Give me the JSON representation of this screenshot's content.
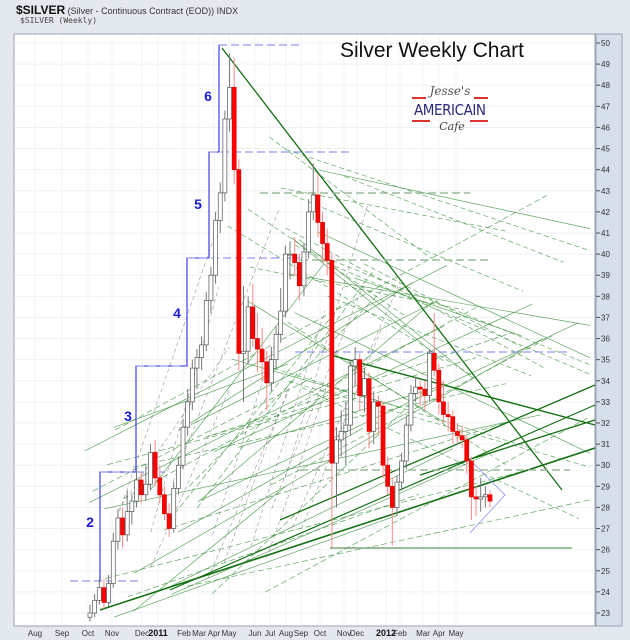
{
  "header": {
    "symbol": "$SILVER",
    "description": "(Silver - Continuous Contract (EOD)) INDX",
    "subtitle": "$SILVER (Weekly)"
  },
  "logo": {
    "text": "Jesse's AMERICAIN Cafe"
  },
  "chart_data": {
    "type": "candlestick",
    "title": "Silver Weekly Chart",
    "ylim": [
      22.5,
      50.5
    ],
    "y_ticks": [
      23,
      24,
      25,
      26,
      27,
      28,
      29,
      30,
      31,
      32,
      33,
      34,
      35,
      36,
      37,
      38,
      39,
      40,
      41,
      42,
      43,
      44,
      45,
      46,
      47,
      48,
      49,
      50
    ],
    "x_ticks": [
      "Aug",
      "Sep",
      "Oct",
      "Nov",
      "Dec",
      "2011",
      "Feb",
      "Mar",
      "Apr",
      "May",
      "Jun",
      "Jul",
      "Aug",
      "Sep",
      "Oct",
      "Nov",
      "Dec",
      "2012",
      "Feb",
      "Mar",
      "Apr",
      "May"
    ],
    "grid": true,
    "colors": {
      "up": "#ffffff",
      "down": "#ff0000",
      "trendline": "#1a7a1a",
      "wave": "#1b1bdc"
    },
    "wave_labels": [
      "2",
      "3",
      "4",
      "5",
      "6"
    ],
    "candles_ohlc": [
      [
        22.8,
        23.4,
        22.6,
        23.0
      ],
      [
        23.0,
        23.9,
        22.8,
        23.6
      ],
      [
        23.6,
        24.6,
        23.4,
        24.2
      ],
      [
        24.2,
        24.6,
        23.2,
        23.5
      ],
      [
        23.5,
        24.8,
        23.3,
        24.4
      ],
      [
        24.4,
        26.8,
        24.2,
        26.4
      ],
      [
        26.4,
        27.9,
        26.0,
        27.5
      ],
      [
        27.5,
        28.0,
        26.1,
        26.7
      ],
      [
        26.7,
        28.8,
        26.4,
        27.8
      ],
      [
        27.8,
        28.6,
        27.2,
        28.3
      ],
      [
        28.3,
        29.8,
        28.0,
        29.3
      ],
      [
        29.3,
        29.7,
        28.2,
        28.6
      ],
      [
        28.6,
        30.0,
        28.3,
        29.1
      ],
      [
        29.1,
        31.0,
        28.8,
        30.6
      ],
      [
        30.6,
        31.2,
        29.0,
        29.4
      ],
      [
        29.4,
        30.0,
        28.2,
        28.6
      ],
      [
        28.6,
        29.0,
        27.4,
        27.7
      ],
      [
        27.7,
        28.2,
        26.6,
        27.0
      ],
      [
        27.0,
        29.2,
        26.8,
        28.9
      ],
      [
        28.9,
        30.4,
        28.6,
        30.0
      ],
      [
        30.0,
        32.2,
        29.8,
        31.8
      ],
      [
        31.8,
        33.6,
        31.4,
        33.0
      ],
      [
        33.0,
        35.0,
        32.6,
        34.6
      ],
      [
        34.6,
        35.5,
        33.6,
        35.1
      ],
      [
        35.1,
        36.1,
        34.5,
        35.7
      ],
      [
        35.7,
        38.2,
        35.4,
        37.8
      ],
      [
        37.8,
        39.4,
        37.2,
        39.0
      ],
      [
        39.0,
        42.0,
        38.6,
        41.6
      ],
      [
        41.6,
        43.4,
        41.0,
        42.9
      ],
      [
        42.9,
        46.8,
        42.5,
        46.4
      ],
      [
        46.4,
        49.5,
        45.8,
        47.9
      ],
      [
        47.9,
        49.3,
        43.3,
        44.0
      ],
      [
        44.0,
        44.5,
        34.5,
        35.3
      ],
      [
        35.3,
        38.5,
        33.0,
        35.4
      ],
      [
        35.4,
        38.0,
        34.8,
        37.5
      ],
      [
        37.5,
        38.6,
        35.6,
        36.0
      ],
      [
        36.0,
        37.2,
        34.4,
        35.5
      ],
      [
        35.5,
        36.5,
        34.0,
        34.9
      ],
      [
        34.9,
        35.4,
        32.6,
        33.9
      ],
      [
        33.9,
        35.6,
        33.5,
        35.0
      ],
      [
        35.0,
        36.6,
        34.6,
        36.2
      ],
      [
        36.2,
        38.4,
        35.8,
        37.3
      ],
      [
        37.3,
        40.4,
        37.0,
        40.0
      ],
      [
        40.0,
        40.6,
        38.8,
        40.0
      ],
      [
        40.0,
        40.8,
        39.0,
        39.6
      ],
      [
        39.6,
        40.0,
        37.8,
        38.5
      ],
      [
        38.5,
        40.5,
        38.0,
        40.1
      ],
      [
        40.1,
        42.6,
        39.8,
        42.0
      ],
      [
        42.0,
        44.3,
        41.6,
        42.8
      ],
      [
        42.8,
        43.8,
        40.8,
        41.5
      ],
      [
        41.5,
        42.0,
        39.6,
        40.5
      ],
      [
        40.5,
        41.2,
        39.0,
        39.7
      ],
      [
        39.7,
        40.0,
        26.1,
        30.1
      ],
      [
        30.1,
        31.8,
        28.0,
        31.2
      ],
      [
        31.2,
        32.6,
        30.4,
        31.6
      ],
      [
        31.6,
        33.0,
        30.0,
        31.9
      ],
      [
        31.9,
        35.0,
        31.4,
        34.7
      ],
      [
        34.7,
        35.6,
        33.8,
        35.0
      ],
      [
        35.0,
        35.3,
        32.6,
        33.3
      ],
      [
        33.3,
        34.6,
        32.5,
        34.1
      ],
      [
        34.1,
        34.4,
        30.8,
        31.6
      ],
      [
        31.6,
        33.5,
        31.0,
        33.0
      ],
      [
        33.0,
        33.3,
        31.4,
        32.8
      ],
      [
        32.8,
        33.0,
        29.4,
        30.0
      ],
      [
        30.0,
        30.4,
        28.6,
        29.0
      ],
      [
        29.0,
        29.4,
        26.2,
        28.0
      ],
      [
        28.0,
        29.5,
        27.6,
        29.2
      ],
      [
        29.2,
        30.6,
        28.8,
        30.2
      ],
      [
        30.2,
        32.3,
        29.8,
        31.9
      ],
      [
        31.9,
        33.8,
        31.6,
        33.4
      ],
      [
        33.4,
        34.2,
        33.0,
        33.7
      ],
      [
        33.7,
        34.0,
        32.8,
        33.6
      ],
      [
        33.6,
        34.0,
        32.6,
        33.3
      ],
      [
        33.3,
        35.5,
        33.0,
        35.3
      ],
      [
        35.3,
        37.2,
        34.2,
        34.5
      ],
      [
        34.5,
        34.8,
        32.4,
        33.0
      ],
      [
        33.0,
        34.0,
        32.0,
        32.4
      ],
      [
        32.4,
        33.0,
        31.6,
        32.3
      ],
      [
        32.3,
        32.6,
        31.0,
        31.6
      ],
      [
        31.6,
        32.0,
        31.0,
        31.4
      ],
      [
        31.4,
        31.9,
        30.8,
        31.2
      ],
      [
        31.2,
        31.4,
        29.6,
        30.2
      ],
      [
        30.2,
        30.4,
        27.4,
        28.5
      ],
      [
        28.5,
        29.0,
        27.6,
        28.4
      ],
      [
        28.4,
        29.4,
        27.8,
        28.5
      ],
      [
        28.5,
        29.0,
        28.0,
        28.6
      ],
      [
        28.6,
        28.8,
        28.0,
        28.3
      ]
    ]
  }
}
